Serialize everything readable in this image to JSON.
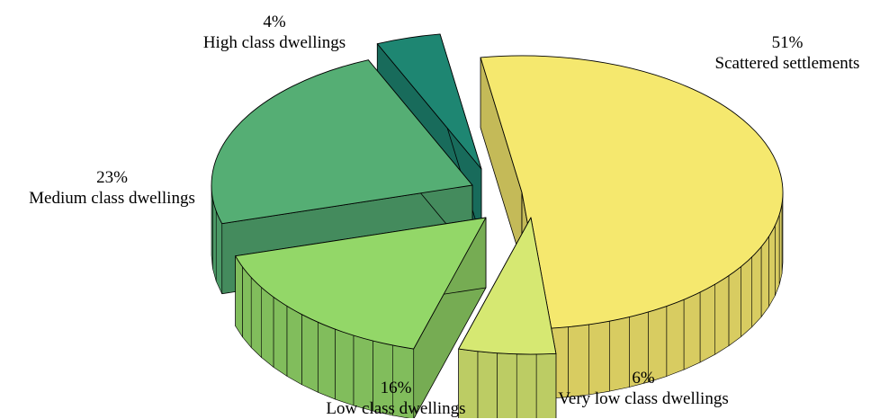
{
  "chart_data": {
    "type": "pie",
    "three_d": true,
    "exploded": true,
    "slices": [
      {
        "label": "Scattered settlements",
        "percent_label": "51%",
        "value": 51,
        "color": "#F5E86E"
      },
      {
        "label": "Very low class dwellings",
        "percent_label": "6%",
        "value": 6,
        "color": "#D6E872"
      },
      {
        "label": "Low class dwellings",
        "percent_label": "16%",
        "value": 16,
        "color": "#93D768"
      },
      {
        "label": "Medium class dwellings",
        "percent_label": "23%",
        "value": 23,
        "color": "#55AE74"
      },
      {
        "label": "High class dwellings",
        "percent_label": "4%",
        "value": 4,
        "color": "#1E8672"
      }
    ]
  }
}
